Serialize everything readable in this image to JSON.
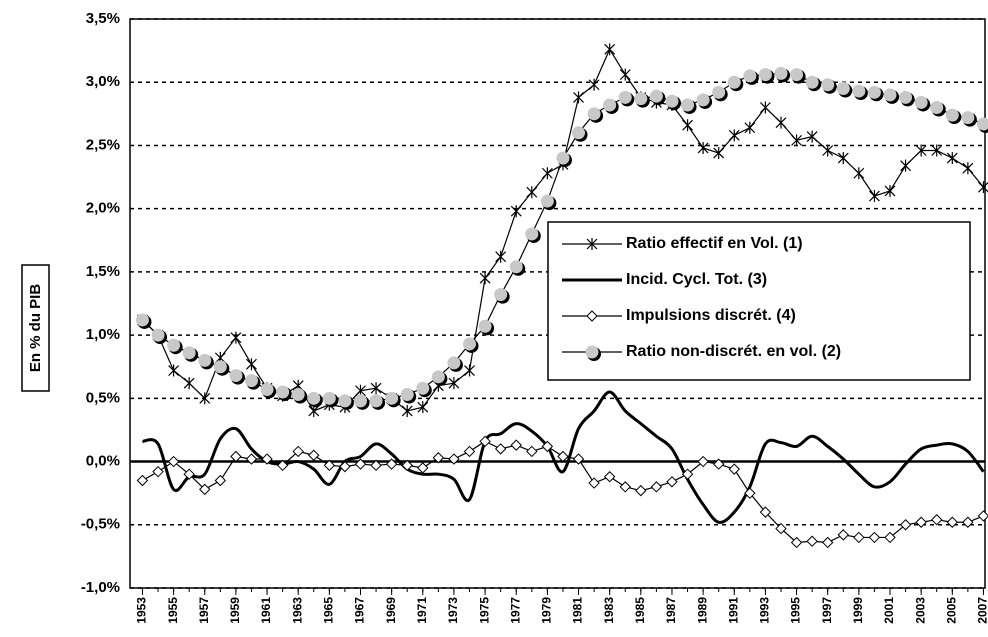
{
  "chart_data": {
    "type": "line",
    "y_label": "En % du PIB",
    "x": [
      1953,
      1954,
      1955,
      1956,
      1957,
      1958,
      1959,
      1960,
      1961,
      1962,
      1963,
      1964,
      1965,
      1966,
      1967,
      1968,
      1969,
      1970,
      1971,
      1972,
      1973,
      1974,
      1975,
      1976,
      1977,
      1978,
      1979,
      1980,
      1981,
      1982,
      1983,
      1984,
      1985,
      1986,
      1987,
      1988,
      1989,
      1990,
      1991,
      1992,
      1993,
      1994,
      1995,
      1996,
      1997,
      1998,
      1999,
      2000,
      2001,
      2002,
      2003,
      2004,
      2005,
      2006,
      2007
    ],
    "xlim": [
      1952.2,
      2007.1
    ],
    "xticks": [
      1953,
      1955,
      1957,
      1959,
      1961,
      1963,
      1965,
      1967,
      1969,
      1971,
      1973,
      1975,
      1977,
      1979,
      1981,
      1983,
      1985,
      1987,
      1989,
      1991,
      1993,
      1995,
      1997,
      1999,
      2001,
      2003,
      2005,
      2007
    ],
    "ylim": [
      -1.0,
      3.5
    ],
    "yticks": [
      {
        "value": -1.0,
        "label": "-1,0%"
      },
      {
        "value": -0.5,
        "label": "-0,5%"
      },
      {
        "value": 0,
        "label": "0,0%"
      },
      {
        "value": 0.5,
        "label": "0,5%"
      },
      {
        "value": 1.0,
        "label": "1,0%"
      },
      {
        "value": 1.5,
        "label": "1,5%"
      },
      {
        "value": 2.0,
        "label": "2,0%"
      },
      {
        "value": 2.5,
        "label": "2,5%"
      },
      {
        "value": 3.0,
        "label": "3,0%"
      },
      {
        "value": 3.5,
        "label": "3,5%"
      }
    ],
    "grid": true,
    "legend": "right",
    "series": [
      {
        "name": "Ratio effectif en Vol. (1)",
        "color": "#000000",
        "marker": "asterisk",
        "values": [
          1.12,
          1.0,
          0.72,
          0.62,
          0.5,
          0.82,
          0.98,
          0.77,
          0.58,
          0.52,
          0.6,
          0.4,
          0.45,
          0.43,
          0.56,
          0.58,
          0.5,
          0.4,
          0.43,
          0.6,
          0.62,
          0.72,
          1.45,
          1.62,
          1.98,
          2.13,
          2.28,
          2.35,
          2.88,
          2.98,
          3.26,
          3.06,
          2.88,
          2.84,
          2.82,
          2.66,
          2.48,
          2.44,
          2.58,
          2.64,
          2.8,
          2.68,
          2.54,
          2.57,
          2.46,
          2.4,
          2.28,
          2.1,
          2.14,
          2.34,
          2.46,
          2.46,
          2.4,
          2.32,
          2.17
        ]
      },
      {
        "name": "Incid. Cycl. Tot. (3)",
        "color": "#000000",
        "marker": "none",
        "values": [
          0.16,
          0.14,
          -0.22,
          -0.12,
          -0.1,
          0.18,
          0.26,
          0.1,
          0.0,
          -0.02,
          0.0,
          -0.06,
          -0.18,
          0.0,
          0.04,
          0.14,
          0.06,
          -0.06,
          -0.1,
          -0.1,
          -0.14,
          -0.3,
          0.16,
          0.22,
          0.3,
          0.24,
          0.12,
          -0.08,
          0.26,
          0.4,
          0.55,
          0.4,
          0.3,
          0.2,
          0.1,
          -0.14,
          -0.34,
          -0.48,
          -0.4,
          -0.2,
          0.14,
          0.15,
          0.12,
          0.2,
          0.12,
          0.02,
          -0.1,
          -0.2,
          -0.16,
          -0.02,
          0.1,
          0.13,
          0.14,
          0.08,
          -0.08
        ]
      },
      {
        "name": "Impulsions discrét. (4)",
        "color": "#000000",
        "marker": "diamond",
        "values": [
          -0.15,
          -0.08,
          0.0,
          -0.1,
          -0.22,
          -0.15,
          0.04,
          0.02,
          0.02,
          -0.03,
          0.08,
          0.05,
          -0.03,
          -0.04,
          -0.02,
          -0.03,
          -0.02,
          -0.03,
          -0.05,
          0.03,
          0.02,
          0.08,
          0.16,
          0.1,
          0.13,
          0.08,
          0.12,
          0.04,
          0.02,
          -0.17,
          -0.12,
          -0.2,
          -0.23,
          -0.2,
          -0.16,
          -0.1,
          0.0,
          -0.02,
          -0.06,
          -0.25,
          -0.4,
          -0.53,
          -0.64,
          -0.63,
          -0.64,
          -0.58,
          -0.6,
          -0.6,
          -0.6,
          -0.5,
          -0.48,
          -0.46,
          -0.48,
          -0.48,
          -0.43
        ]
      },
      {
        "name": "Ratio non-discrét. en vol. (2)",
        "color": "#c8c8c8",
        "marker": "circle",
        "values": [
          1.12,
          1.0,
          0.92,
          0.86,
          0.8,
          0.75,
          0.68,
          0.64,
          0.57,
          0.55,
          0.53,
          0.5,
          0.5,
          0.48,
          0.48,
          0.48,
          0.5,
          0.53,
          0.58,
          0.67,
          0.78,
          0.93,
          1.07,
          1.32,
          1.54,
          1.8,
          2.06,
          2.4,
          2.6,
          2.75,
          2.82,
          2.88,
          2.87,
          2.89,
          2.85,
          2.82,
          2.86,
          2.92,
          3.0,
          3.05,
          3.06,
          3.07,
          3.06,
          3.0,
          2.98,
          2.95,
          2.93,
          2.92,
          2.9,
          2.88,
          2.84,
          2.8,
          2.74,
          2.72,
          2.67
        ]
      }
    ]
  }
}
